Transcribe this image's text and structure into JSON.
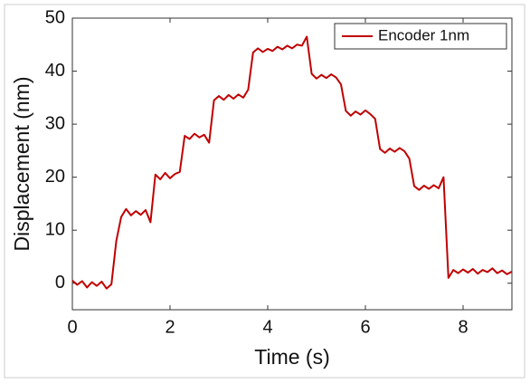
{
  "chart_data": {
    "type": "line",
    "x_label": "Time (s)",
    "y_label": "Displacement (nm)",
    "xlim": [
      0,
      9
    ],
    "ylim": [
      -5,
      50
    ],
    "xticks": [
      0,
      2,
      4,
      6,
      8
    ],
    "yticks": [
      0,
      10,
      20,
      30,
      40,
      50
    ],
    "legend": "top-right",
    "x": [
      0,
      0.1,
      0.2,
      0.3,
      0.4,
      0.5,
      0.6,
      0.7,
      0.8,
      0.9,
      1.0,
      1.1,
      1.2,
      1.3,
      1.4,
      1.5,
      1.6,
      1.7,
      1.8,
      1.9,
      2.0,
      2.1,
      2.2,
      2.3,
      2.4,
      2.5,
      2.6,
      2.7,
      2.8,
      2.9,
      3.0,
      3.1,
      3.2,
      3.3,
      3.4,
      3.5,
      3.6,
      3.7,
      3.8,
      3.9,
      4.0,
      4.1,
      4.2,
      4.3,
      4.4,
      4.5,
      4.6,
      4.7,
      4.8,
      4.9,
      5.0,
      5.1,
      5.2,
      5.3,
      5.4,
      5.5,
      5.6,
      5.7,
      5.8,
      5.9,
      6.0,
      6.1,
      6.2,
      6.3,
      6.4,
      6.5,
      6.6,
      6.7,
      6.8,
      6.9,
      7.0,
      7.1,
      7.2,
      7.3,
      7.4,
      7.5,
      7.6,
      7.7,
      7.8,
      7.9,
      8.0,
      8.1,
      8.2,
      8.3,
      8.4,
      8.5,
      8.6,
      8.7,
      8.8,
      8.9,
      9.0
    ],
    "series": [
      {
        "name": "Encoder 1nm",
        "color": "#c00000",
        "values": [
          0.5,
          -0.3,
          0.4,
          -0.8,
          0.2,
          -0.5,
          0.3,
          -1.0,
          -0.2,
          8,
          12.5,
          14,
          12.8,
          13.6,
          12.9,
          13.8,
          11.5,
          20.5,
          19.6,
          20.8,
          19.8,
          20.6,
          21,
          27.8,
          27.2,
          28.2,
          27.5,
          28,
          26.5,
          34.5,
          35.3,
          34.6,
          35.5,
          34.8,
          35.6,
          35,
          36.5,
          43.5,
          44.3,
          43.6,
          44.2,
          43.8,
          44.6,
          44.1,
          44.8,
          44.3,
          45,
          44.8,
          46.5,
          39.5,
          38.6,
          39.3,
          38.7,
          39.4,
          38.8,
          37.5,
          32.5,
          31.6,
          32.4,
          31.8,
          32.6,
          31.9,
          31,
          25.3,
          24.6,
          25.4,
          24.8,
          25.5,
          24.9,
          23.5,
          18.3,
          17.6,
          18.4,
          17.8,
          18.5,
          17.9,
          20,
          1,
          2.5,
          1.9,
          2.6,
          2.0,
          2.7,
          1.8,
          2.5,
          2.1,
          2.8,
          1.9,
          2.4,
          1.7,
          2.2
        ]
      }
    ]
  }
}
